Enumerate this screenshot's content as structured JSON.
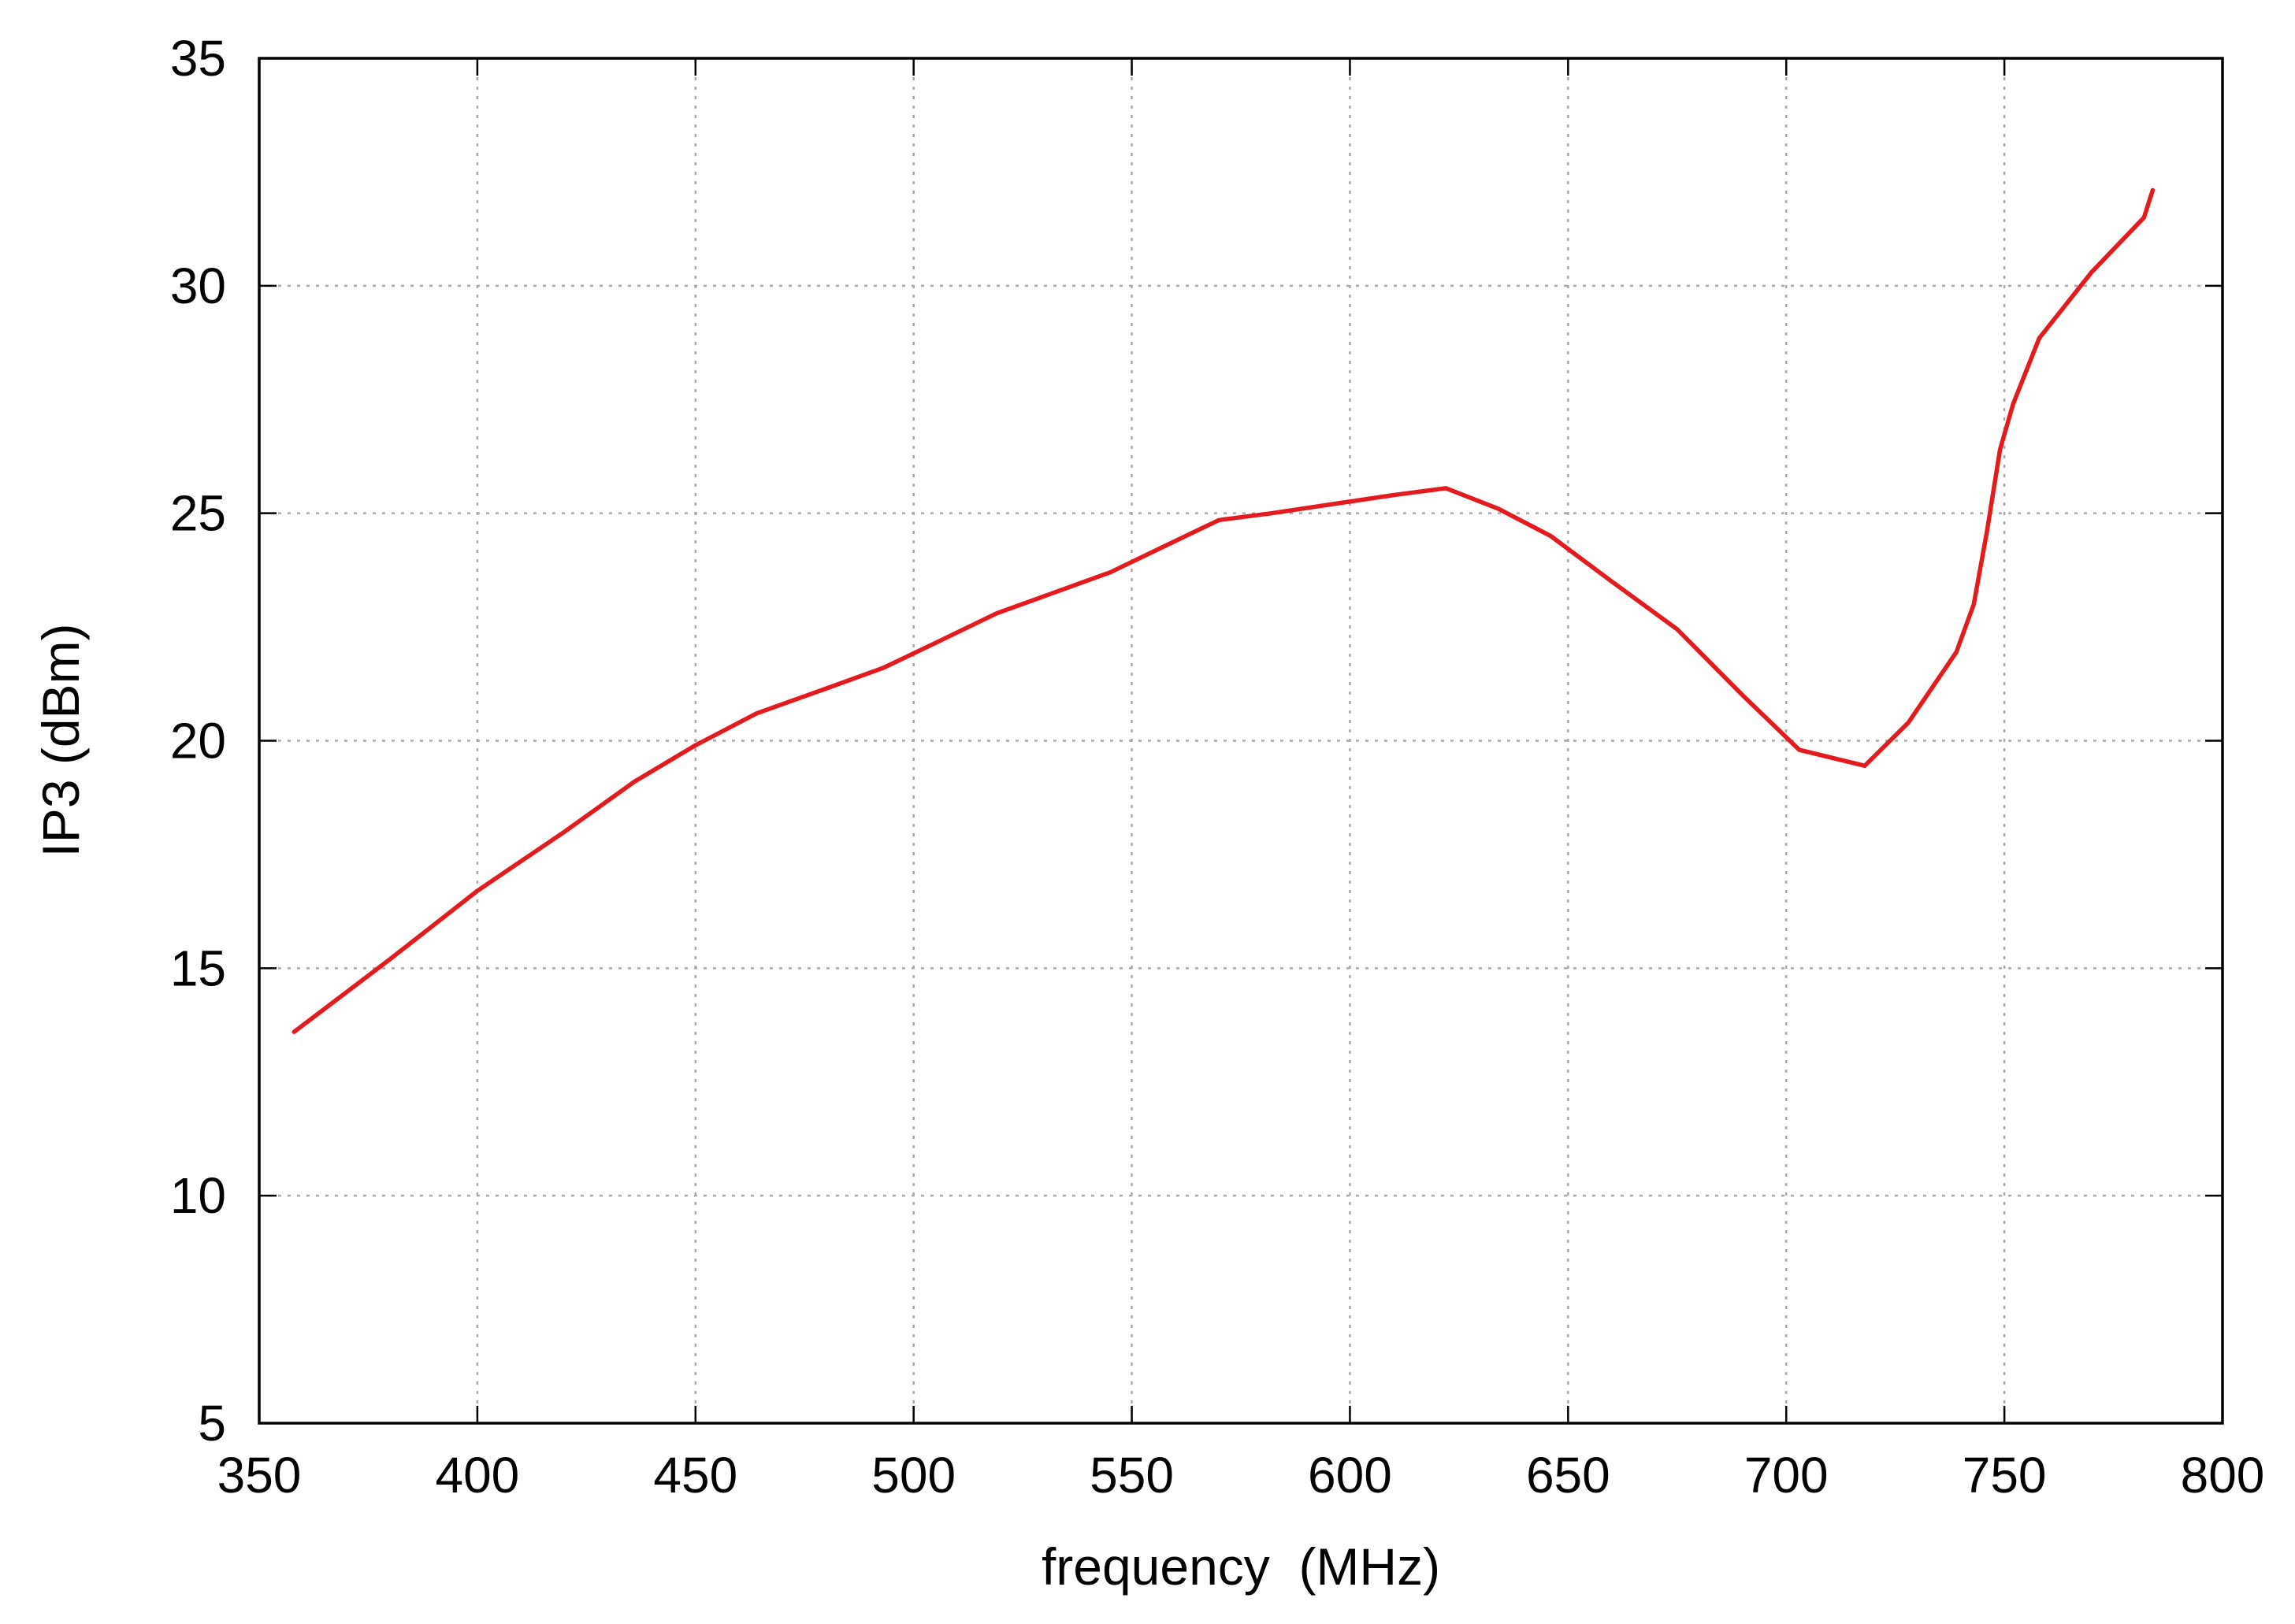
{
  "chart_data": {
    "type": "line",
    "title": "",
    "xlabel": "frequency  (MHz)",
    "ylabel": "IP3 (dBm)",
    "xlim": [
      350,
      800
    ],
    "ylim": [
      5,
      35
    ],
    "x_ticks": [
      350,
      400,
      450,
      500,
      550,
      600,
      650,
      700,
      750,
      800
    ],
    "y_ticks": [
      5,
      10,
      15,
      20,
      25,
      30,
      35
    ],
    "x_tick_labels": [
      "350",
      "400",
      "450",
      "500",
      "550",
      "600",
      "650",
      "700",
      "750",
      "800"
    ],
    "y_tick_labels": [
      "5",
      "10",
      "15",
      "20",
      "25",
      "30",
      "35"
    ],
    "grid": true,
    "legend": "none",
    "series": [
      {
        "color": "#e41a1c",
        "x": [
          358,
          380,
          400,
          420,
          436,
          450,
          464,
          480,
          493,
          505,
          519,
          532,
          545,
          558,
          570,
          582,
          596,
          610,
          622,
          634,
          646,
          660,
          675,
          690,
          703,
          718,
          728,
          739,
          743,
          746,
          749,
          752,
          758,
          770,
          782,
          784
        ],
        "y": [
          13.6,
          15.2,
          16.7,
          18.0,
          19.1,
          19.9,
          20.6,
          21.15,
          21.6,
          22.15,
          22.8,
          23.25,
          23.7,
          24.3,
          24.85,
          25.0,
          25.2,
          25.4,
          25.55,
          25.1,
          24.5,
          23.5,
          22.45,
          21.0,
          19.8,
          19.45,
          20.4,
          21.95,
          23.0,
          24.6,
          26.4,
          27.4,
          28.85,
          30.3,
          31.5,
          32.1
        ]
      }
    ]
  }
}
